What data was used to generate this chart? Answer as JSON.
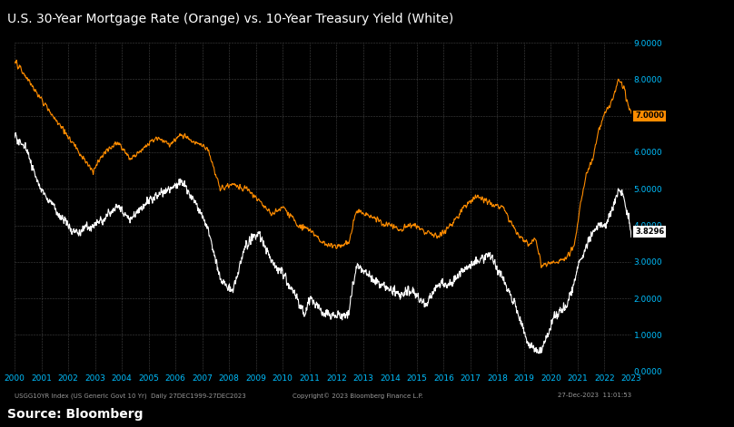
{
  "title": "U.S. 30-Year Mortgage Rate (Orange) vs. 10-Year Treasury Yield (White)",
  "background_color": "#000000",
  "plot_bg_color": "#000000",
  "title_color": "#ffffff",
  "source_text": "Source: Bloomberg",
  "footer_left": "USGG10YR Index (US Generic Govt 10 Yr)  Daily 27DEC1999-27DEC2023",
  "footer_center": "Copyright© 2023 Bloomberg Finance L.P.",
  "footer_right": "27-Dec-2023  11:01:53",
  "x_labels": [
    "2000",
    "2001",
    "2002",
    "2003",
    "2004",
    "2005",
    "2006",
    "2007",
    "2008",
    "2009",
    "2010",
    "2011",
    "2012",
    "2013",
    "2014",
    "2015",
    "2016",
    "2017",
    "2018",
    "2019",
    "2020",
    "2021",
    "2022",
    "2023"
  ],
  "y_ticks": [
    0.0,
    1.0,
    2.0,
    3.0,
    4.0,
    5.0,
    6.0,
    7.0,
    8.0,
    9.0
  ],
  "y_min": 0.0,
  "y_max": 9.0,
  "mortgage_color": "#FF8C00",
  "treasury_color": "#FFFFFF",
  "grid_color": "#555555",
  "label_color": "#00BFFF",
  "mortgage_last_value": 7.0,
  "treasury_last_value": 3.8296,
  "mortgage_label_bg": "#FF8C00",
  "treasury_label_bg": "#FFFFFF",
  "n_points": 6000
}
